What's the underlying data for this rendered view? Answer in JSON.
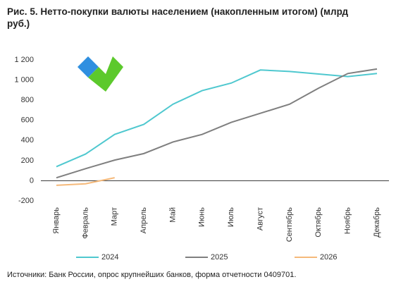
{
  "chart_data": {
    "type": "line",
    "title": "Рис. 5. Нетто-покупки валюты населением (накопленным итогом) (млрд руб.)",
    "categories": [
      "Январь",
      "Февраль",
      "Март",
      "Апрель",
      "Май",
      "Июнь",
      "Июль",
      "Август",
      "Сентябрь",
      "Октябрь",
      "Ноябрь",
      "Декабрь"
    ],
    "series": [
      {
        "name": "2024",
        "color": "#4fc8cf",
        "values": [
          140,
          265,
          460,
          560,
          760,
          895,
          970,
          1100,
          1085,
          1060,
          1035,
          1065
        ]
      },
      {
        "name": "2025",
        "color": "#7f7f7f",
        "values": [
          30,
          120,
          205,
          270,
          385,
          460,
          580,
          670,
          760,
          920,
          1065,
          1110
        ]
      },
      {
        "name": "2026",
        "color": "#f5b97a",
        "values": [
          -45,
          -30,
          30,
          null,
          null,
          null,
          null,
          null,
          null,
          null,
          null,
          null
        ]
      }
    ],
    "ylim": [
      -200,
      1200
    ],
    "yticks": [
      -200,
      0,
      200,
      400,
      600,
      800,
      {
        "value": 1000,
        "label": "1 000"
      },
      {
        "value": 1200,
        "label": "1 200"
      }
    ],
    "grid": false,
    "legend": "bottom",
    "source": "Источники: Банк России, опрос крупнейших банков, форма отчетности 0409701."
  }
}
